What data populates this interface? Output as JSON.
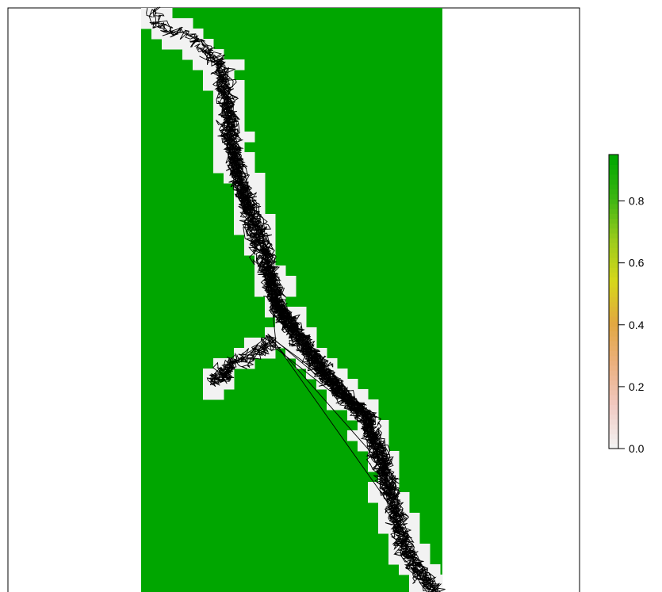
{
  "chart_data": {
    "type": "heatmap",
    "title": "",
    "xlabel": "",
    "ylabel": "",
    "colorbar": {
      "range": [
        0,
        0.95
      ],
      "ticks": [
        {
          "value": 0.0,
          "label": "0.0"
        },
        {
          "value": 0.2,
          "label": "0.2"
        },
        {
          "value": 0.4,
          "label": "0.4"
        },
        {
          "value": 0.6,
          "label": "0.6"
        },
        {
          "value": 0.8,
          "label": "0.8"
        }
      ],
      "palette": [
        "#f2f2f2",
        "#f1c9c2",
        "#ebb07e",
        "#e2a840",
        "#d6d71a",
        "#9bcb1c",
        "#3db612",
        "#00a600"
      ]
    },
    "raster": {
      "high_value": 1.0,
      "low_value": 0.0,
      "high_color": "#00a600",
      "low_color": "#f2f2f2",
      "corridor_spine": [
        [
          0.0,
          0.03
        ],
        [
          0.03,
          0.08
        ],
        [
          0.06,
          0.18
        ],
        [
          0.1,
          0.26
        ],
        [
          0.16,
          0.29
        ],
        [
          0.23,
          0.3
        ],
        [
          0.3,
          0.33
        ],
        [
          0.38,
          0.38
        ],
        [
          0.46,
          0.43
        ],
        [
          0.52,
          0.46
        ],
        [
          0.58,
          0.55
        ],
        [
          0.64,
          0.63
        ],
        [
          0.7,
          0.75
        ],
        [
          0.78,
          0.8
        ],
        [
          0.86,
          0.84
        ],
        [
          0.93,
          0.88
        ],
        [
          1.0,
          0.98
        ]
      ],
      "side_branch": [
        [
          0.57,
          0.44
        ],
        [
          0.61,
          0.3
        ],
        [
          0.64,
          0.24
        ]
      ]
    },
    "tracks": {
      "color": "#000000",
      "count": 40
    }
  }
}
